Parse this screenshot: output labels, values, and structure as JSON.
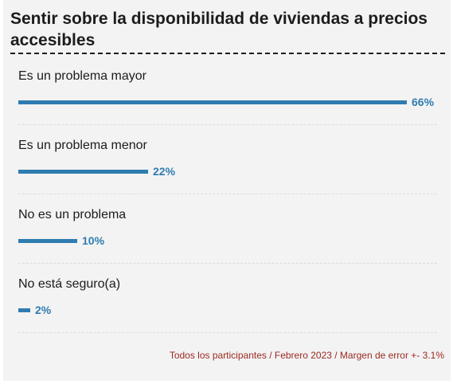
{
  "chart_data": {
    "type": "bar",
    "orientation": "horizontal",
    "title": "Sentir sobre la disponibilidad de viviendas a precios accesibles",
    "categories": [
      "Es un problema mayor",
      "Es un problema menor",
      "No es un problema",
      "No está seguro(a)"
    ],
    "values": [
      66,
      22,
      10,
      2
    ],
    "value_labels": [
      "66%",
      "22%",
      "10%",
      "2%"
    ],
    "xlim": [
      0,
      66
    ],
    "grid": false,
    "bar_color": "#2f7cb0",
    "footnote": "Todos los participantes / Febrero 2023 / Margen de error +- 3.1%"
  }
}
